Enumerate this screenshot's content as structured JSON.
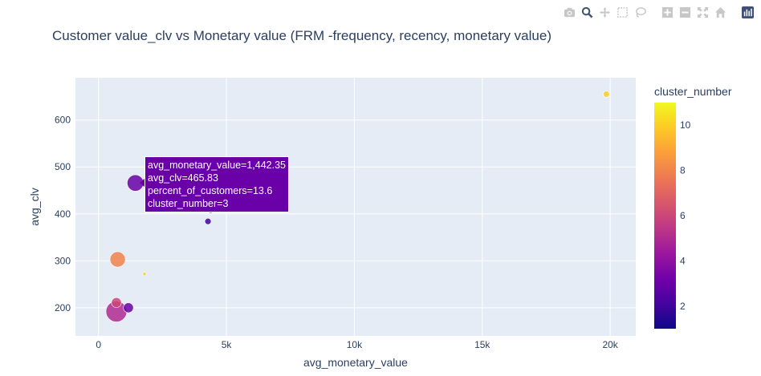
{
  "modebar": {
    "icons": [
      "camera-icon",
      "zoom-icon",
      "pan-icon",
      "box-select-icon",
      "lasso-select-icon",
      "zoom-in-icon",
      "zoom-out-icon",
      "autoscale-icon",
      "reset-axes-icon",
      "plotly-logo-icon"
    ]
  },
  "tooltip": {
    "lines": [
      "avg_monetary_value=1,442.35",
      "avg_clv=465.83",
      "percent_of_customers=13.6",
      "cluster_number=3"
    ],
    "color": "#6a00a8"
  },
  "chart_data": {
    "type": "scatter",
    "title": "Customer value_clv vs Monetary value (FRM -frequency, recency, monetary value)",
    "xlabel": "avg_monetary_value",
    "ylabel": "avg_clv",
    "xlim": [
      -900,
      21000
    ],
    "ylim": [
      140,
      690
    ],
    "xticks": [
      0,
      5000,
      10000,
      15000,
      20000
    ],
    "xtick_labels": [
      "0",
      "5k",
      "10k",
      "15k",
      "20k"
    ],
    "yticks": [
      200,
      300,
      400,
      500,
      600
    ],
    "ytick_labels": [
      "200",
      "300",
      "400",
      "500",
      "600"
    ],
    "grid": true,
    "colorbar": {
      "title": "cluster_number",
      "range": [
        1,
        11
      ],
      "ticks": [
        2,
        4,
        6,
        8,
        10
      ],
      "tick_labels": [
        "2",
        "4",
        "6",
        "8",
        "10"
      ],
      "colorscale": [
        "#0d0887",
        "#46039f",
        "#7201a8",
        "#9c179e",
        "#bd3786",
        "#d8576b",
        "#ed7953",
        "#fb9f3a",
        "#fdca26",
        "#f0f921"
      ]
    },
    "points": [
      {
        "x": 19850,
        "y": 655,
        "cluster": 10,
        "size": 2
      },
      {
        "x": 1442.35,
        "y": 465.83,
        "cluster": 3,
        "size": 13.6
      },
      {
        "x": 4380,
        "y": 407,
        "cluster": 4,
        "size": 1.5
      },
      {
        "x": 4280,
        "y": 384,
        "cluster": 2,
        "size": 2
      },
      {
        "x": 750,
        "y": 303,
        "cluster": 8,
        "size": 12
      },
      {
        "x": 1800,
        "y": 272,
        "cluster": 10,
        "size": 0.6
      },
      {
        "x": 700,
        "y": 211,
        "cluster": 6,
        "size": 5
      },
      {
        "x": 1170,
        "y": 200,
        "cluster": 3,
        "size": 5
      },
      {
        "x": 700,
        "y": 192,
        "cluster": 5,
        "size": 22
      }
    ]
  }
}
